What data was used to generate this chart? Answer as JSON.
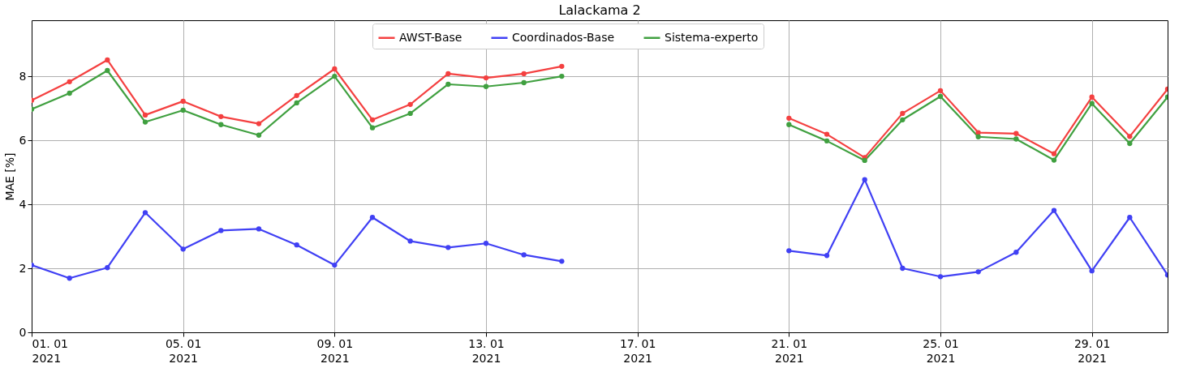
{
  "chart_data": {
    "type": "line",
    "title": "Lalackama 2",
    "ylabel": "MAE [%]",
    "x": [
      "2021-01-01",
      "2021-01-02",
      "2021-01-03",
      "2021-01-04",
      "2021-01-05",
      "2021-01-06",
      "2021-01-07",
      "2021-01-08",
      "2021-01-09",
      "2021-01-10",
      "2021-01-11",
      "2021-01-12",
      "2021-01-13",
      "2021-01-14",
      "2021-01-15",
      "2021-01-16",
      "2021-01-17",
      "2021-01-18",
      "2021-01-19",
      "2021-01-20",
      "2021-01-21",
      "2021-01-22",
      "2021-01-23",
      "2021-01-24",
      "2021-01-25",
      "2021-01-26",
      "2021-01-27",
      "2021-01-28",
      "2021-01-29",
      "2021-01-30",
      "2021-01-31"
    ],
    "series": [
      {
        "name": "AWST-Base",
        "color": "#f44040",
        "values": [
          7.25,
          7.83,
          8.51,
          6.79,
          7.22,
          6.74,
          6.52,
          7.4,
          8.23,
          6.64,
          7.12,
          8.08,
          7.95,
          8.08,
          8.31,
          null,
          null,
          null,
          null,
          null,
          6.69,
          6.19,
          5.46,
          6.84,
          7.55,
          6.24,
          6.21,
          5.58,
          7.35,
          6.12,
          7.6
        ]
      },
      {
        "name": "Coordinados-Base",
        "color": "#4040f4",
        "values": [
          2.1,
          1.69,
          2.02,
          3.74,
          2.6,
          3.18,
          3.23,
          2.73,
          2.1,
          3.59,
          2.85,
          2.65,
          2.78,
          2.42,
          2.22,
          null,
          null,
          null,
          null,
          null,
          2.55,
          2.4,
          4.77,
          2.0,
          1.74,
          1.89,
          2.5,
          3.81,
          1.92,
          3.59,
          1.79
        ]
      },
      {
        "name": "Sistema-experto",
        "color": "#40a040",
        "values": [
          6.97,
          7.47,
          8.18,
          6.57,
          6.94,
          6.49,
          6.16,
          7.17,
          8.0,
          6.39,
          6.84,
          7.75,
          7.68,
          7.8,
          8.0,
          null,
          null,
          null,
          null,
          null,
          6.49,
          5.98,
          5.37,
          6.64,
          7.37,
          6.11,
          6.04,
          5.38,
          7.15,
          5.9,
          7.35
        ]
      }
    ],
    "xlim": [
      "2021-01-01",
      "2021-01-31"
    ],
    "xticks": [
      {
        "value": "2021-01-01",
        "label": "01. 01\n2021"
      },
      {
        "value": "2021-01-05",
        "label": "05. 01\n2021"
      },
      {
        "value": "2021-01-09",
        "label": "09. 01\n2021"
      },
      {
        "value": "2021-01-13",
        "label": "13. 01\n2021"
      },
      {
        "value": "2021-01-17",
        "label": "17. 01\n2021"
      },
      {
        "value": "2021-01-21",
        "label": "21. 01\n2021"
      },
      {
        "value": "2021-01-25",
        "label": "25. 01\n2021"
      },
      {
        "value": "2021-01-29",
        "label": "29. 01\n2021"
      }
    ],
    "ylim": [
      0,
      9.75
    ],
    "yticks": [
      0,
      2,
      4,
      6,
      8
    ],
    "grid": true,
    "legend": "top",
    "marker": "circle",
    "line_style": "solid"
  }
}
